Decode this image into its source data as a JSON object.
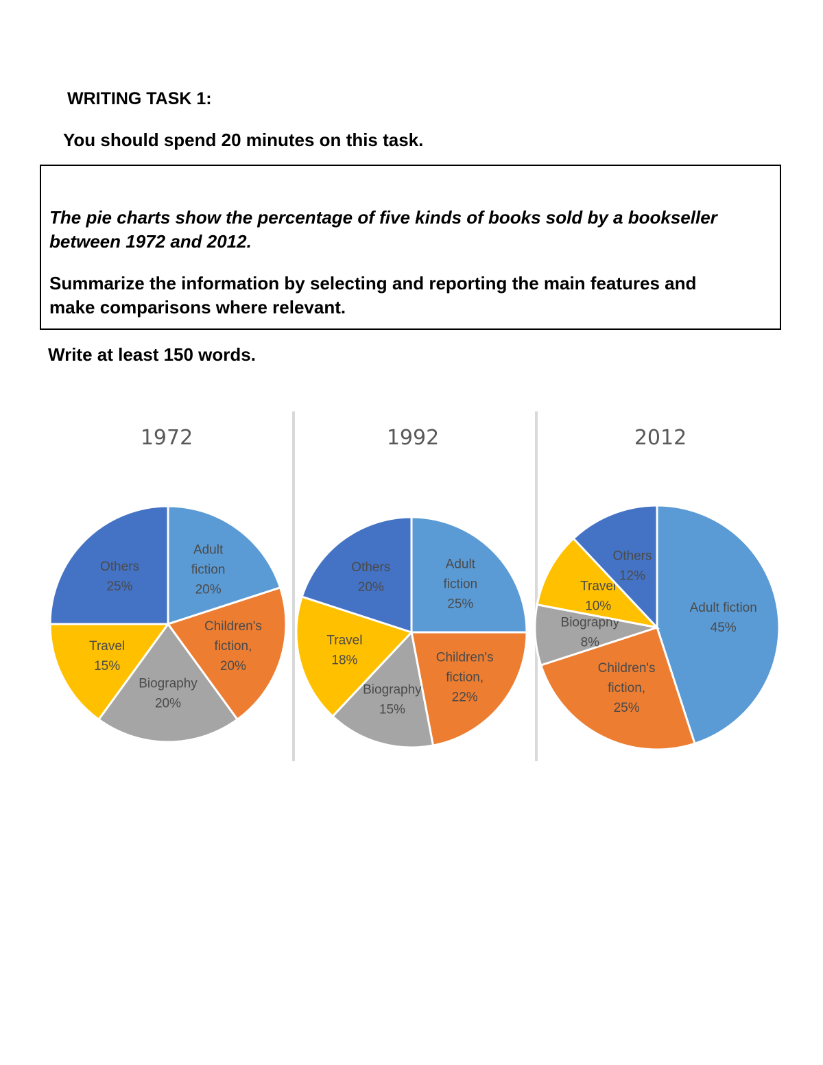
{
  "header": {
    "task_label": "WRITING TASK 1:",
    "time_instruction": "You should spend 20 minutes on this task."
  },
  "task_box": {
    "description_line1": "The pie charts show the percentage of five kinds of books sold by a bookseller",
    "description_line2": "between 1972 and 2012.",
    "instruction_line1": "Summarize the information by selecting and reporting the main features and",
    "instruction_line2": "make comparisons where relevant."
  },
  "word_count_instruction": "Write at least 150 words.",
  "chart_data": [
    {
      "type": "pie",
      "title": "1972",
      "labels": [
        "Adult fiction",
        "Children's fiction,",
        "Biography",
        "Travel",
        "Others"
      ],
      "values": [
        20,
        20,
        20,
        15,
        25
      ],
      "value_labels": [
        "20%",
        "20%",
        "20%",
        "15%",
        "25%"
      ],
      "colors": [
        "#5b9bd5",
        "#ed7d31",
        "#a5a5a5",
        "#ffc000",
        "#4472c4"
      ],
      "legend": "none"
    },
    {
      "type": "pie",
      "title": "1992",
      "labels": [
        "Adult fiction",
        "Children's fiction,",
        "Biography",
        "Travel",
        "Others"
      ],
      "values": [
        25,
        22,
        15,
        18,
        20
      ],
      "value_labels": [
        "25%",
        "22%",
        "15%",
        "18%",
        "20%"
      ],
      "colors": [
        "#5b9bd5",
        "#ed7d31",
        "#a5a5a5",
        "#ffc000",
        "#4472c4"
      ],
      "legend": "none"
    },
    {
      "type": "pie",
      "title": "2012",
      "labels": [
        "Adult fiction",
        "Children's fiction,",
        "Biography",
        "Travel",
        "Others"
      ],
      "values": [
        45,
        25,
        8,
        10,
        12
      ],
      "value_labels": [
        "45%",
        "25%",
        "8%",
        "10%",
        "12%"
      ],
      "colors": [
        "#5b9bd5",
        "#ed7d31",
        "#a5a5a5",
        "#ffc000",
        "#4472c4"
      ],
      "legend": "none"
    }
  ]
}
